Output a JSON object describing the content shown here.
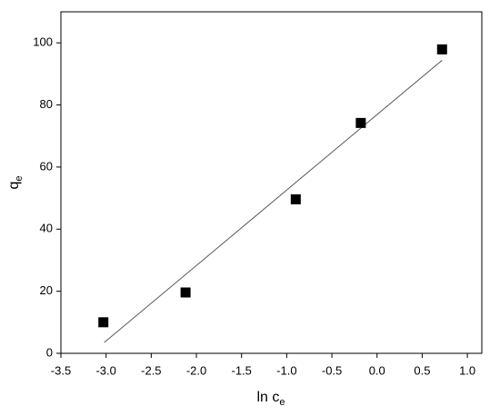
{
  "chart_data": {
    "type": "scatter",
    "x_label": {
      "text": "ln c",
      "subscript": "e"
    },
    "y_label": {
      "text": "q",
      "subscript": "e"
    },
    "x": [
      -3.03,
      -2.12,
      -0.9,
      -0.18,
      0.72
    ],
    "values": [
      10,
      19.6,
      49.6,
      74.2,
      97.9
    ],
    "color": "#000000",
    "fit_line": {
      "x": [
        -3.02,
        0.72
      ],
      "y": [
        3.5,
        94.4
      ],
      "color": "#555555"
    },
    "xlim": [
      -3.5,
      1.16
    ],
    "ylim": [
      0,
      110
    ],
    "xticks": [
      -3.5,
      {
        "value": -3,
        "label": "-3.0"
      },
      -2.5,
      {
        "value": -2,
        "label": "-2.0"
      },
      -1.5,
      {
        "value": -1,
        "label": "-1.0"
      },
      -0.5,
      {
        "value": 0,
        "label": "0.0"
      },
      0.5,
      {
        "value": 1,
        "label": "1.0"
      }
    ],
    "yticks": [
      0,
      20,
      40,
      60,
      80,
      100
    ]
  }
}
